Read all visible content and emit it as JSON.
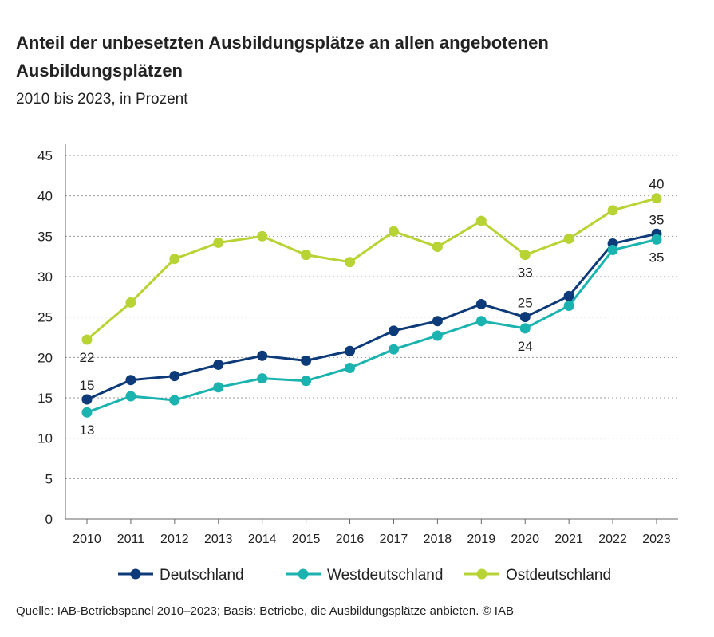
{
  "title": "Anteil der unbesetzten Ausbildungsplätze an allen angebotenen Ausbildungsplätzen",
  "subtitle": "2010 bis 2023, in Prozent",
  "footer": "Quelle: IAB-Betriebspanel 2010–2023; Basis: Betriebe, die Ausbildungsplätze anbieten.  © IAB",
  "chart_data": {
    "type": "line",
    "x": [
      2010,
      2011,
      2012,
      2013,
      2014,
      2015,
      2016,
      2017,
      2018,
      2019,
      2020,
      2021,
      2022,
      2023
    ],
    "ylim": [
      0,
      45
    ],
    "yticks": [
      0,
      5,
      10,
      15,
      20,
      25,
      30,
      35,
      40,
      45
    ],
    "grid": "horizontal dotted",
    "legend": "bottom",
    "series": [
      {
        "name": "Deutschland",
        "color": "#0d3a78",
        "values": [
          14.8,
          17.2,
          17.7,
          19.1,
          20.2,
          19.6,
          20.8,
          23.3,
          24.5,
          26.6,
          25.0,
          27.6,
          34.1,
          35.3
        ],
        "labels": [
          {
            "x": 2010,
            "text": "15",
            "pos": "above"
          },
          {
            "x": 2020,
            "text": "25",
            "pos": "above"
          },
          {
            "x": 2023,
            "text": "35",
            "pos": "above"
          }
        ]
      },
      {
        "name": "Westdeutschland",
        "color": "#1ab3b0",
        "values": [
          13.2,
          15.2,
          14.7,
          16.3,
          17.4,
          17.1,
          18.7,
          21.0,
          22.7,
          24.5,
          23.6,
          26.4,
          33.3,
          34.6
        ],
        "labels": [
          {
            "x": 2010,
            "text": "13",
            "pos": "below"
          },
          {
            "x": 2020,
            "text": "24",
            "pos": "below"
          },
          {
            "x": 2023,
            "text": "35",
            "pos": "below"
          }
        ]
      },
      {
        "name": "Ostdeutschland",
        "color": "#b7d334",
        "values": [
          22.2,
          26.8,
          32.2,
          34.2,
          35.0,
          32.7,
          31.8,
          35.6,
          33.7,
          36.9,
          32.7,
          34.7,
          38.2,
          39.7
        ],
        "labels": [
          {
            "x": 2010,
            "text": "22",
            "pos": "below"
          },
          {
            "x": 2020,
            "text": "33",
            "pos": "below"
          },
          {
            "x": 2023,
            "text": "40",
            "pos": "above"
          }
        ]
      }
    ]
  }
}
